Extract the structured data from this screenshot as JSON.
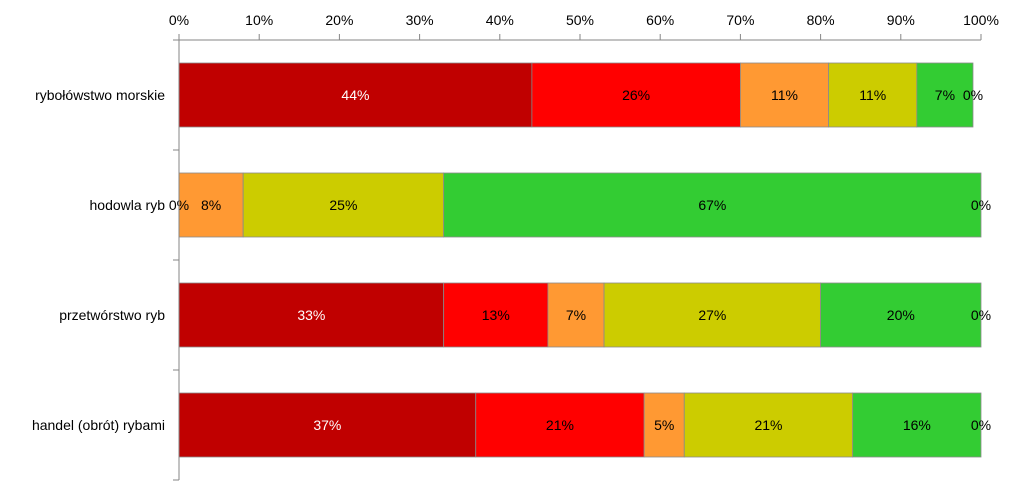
{
  "chart_data": {
    "type": "bar",
    "orientation": "horizontal",
    "stacked": "percent",
    "xlim": [
      0,
      100
    ],
    "x_ticks": [
      "0%",
      "10%",
      "20%",
      "30%",
      "40%",
      "50%",
      "60%",
      "70%",
      "80%",
      "90%",
      "100%"
    ],
    "categories": [
      "rybołówstwo morskie",
      "hodowla ryb",
      "przetwórstwo ryb",
      "handel (obrót) rybami"
    ],
    "series": [
      {
        "color": "#c00000",
        "label_color": "#ffffff",
        "values": [
          44,
          0,
          33,
          37
        ],
        "labels": [
          "44%",
          "0%",
          "33%",
          "37%"
        ]
      },
      {
        "color": "#ff0000",
        "label_color": "#000000",
        "values": [
          26,
          0,
          13,
          21
        ],
        "labels": [
          "26%",
          "",
          "13%",
          "21%"
        ]
      },
      {
        "color": "#ff9933",
        "label_color": "#000000",
        "values": [
          11,
          8,
          7,
          5
        ],
        "labels": [
          "11%",
          "8%",
          "7%",
          "5%"
        ]
      },
      {
        "color": "#cccc00",
        "label_color": "#000000",
        "values": [
          11,
          25,
          27,
          21
        ],
        "labels": [
          "11%",
          "25%",
          "27%",
          "21%"
        ]
      },
      {
        "color": "#33cc33",
        "label_color": "#000000",
        "values": [
          7,
          67,
          20,
          16
        ],
        "labels": [
          "7%",
          "67%",
          "20%",
          "16%"
        ]
      },
      {
        "color": "#99ccff",
        "label_color": "#000000",
        "values": [
          0,
          0,
          0,
          0
        ],
        "labels": [
          "0%",
          "0%",
          "0%",
          "0%"
        ]
      }
    ],
    "grid": false,
    "legend": "none"
  }
}
